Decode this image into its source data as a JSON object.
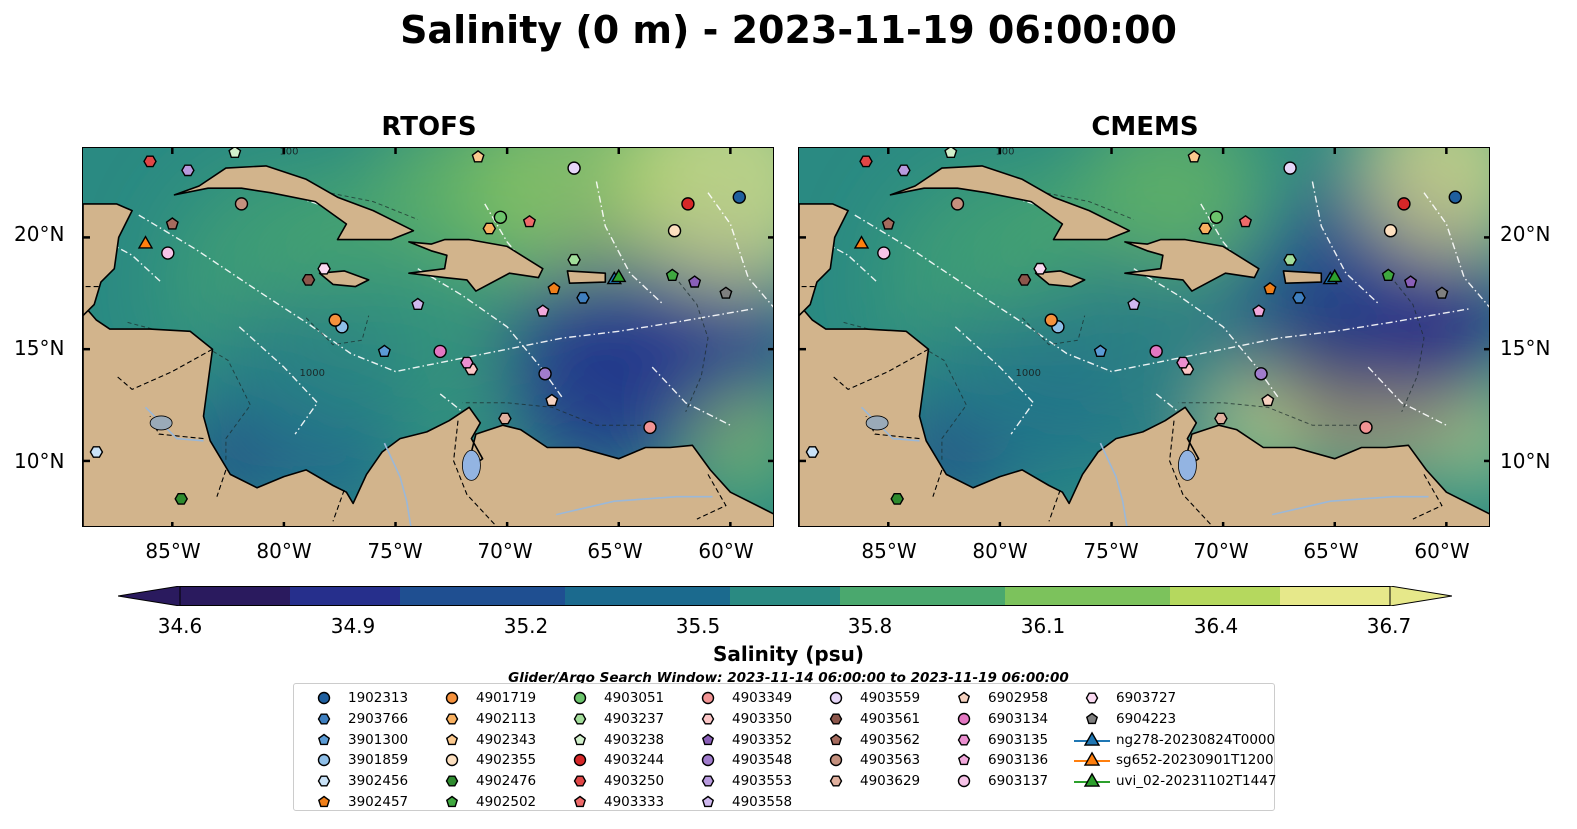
{
  "title": "Salinity (0 m) - 2023-11-19 06:00:00",
  "panels": [
    {
      "title": "RTOFS",
      "anomaly": "rtofs"
    },
    {
      "title": "CMEMS",
      "anomaly": "cmems"
    }
  ],
  "map_extent": {
    "lon": [
      -89,
      -58
    ],
    "lat": [
      7,
      24
    ]
  },
  "lat_ticks": [
    {
      "value": 20,
      "label": "20°N"
    },
    {
      "value": 15,
      "label": "15°N"
    },
    {
      "value": 10,
      "label": "10°N"
    }
  ],
  "lon_ticks": [
    {
      "value": -85,
      "label": "85°W"
    },
    {
      "value": -80,
      "label": "80°W"
    },
    {
      "value": -75,
      "label": "75°W"
    },
    {
      "value": -70,
      "label": "70°W"
    },
    {
      "value": -65,
      "label": "65°W"
    },
    {
      "value": -60,
      "label": "60°W"
    }
  ],
  "colorbar": {
    "label": "Salinity (psu)",
    "min": 34.6,
    "max": 36.7,
    "ticks": [
      "34.6",
      "34.9",
      "35.2",
      "35.5",
      "35.8",
      "36.1",
      "36.4",
      "36.7"
    ],
    "colormap": [
      "#2a1a5e",
      "#262f8c",
      "#1f4f91",
      "#1b6a8e",
      "#2a8a82",
      "#4aa86e",
      "#7cc25c",
      "#b5d85e",
      "#e6e88a"
    ]
  },
  "contour_labels": [
    "1000",
    "100"
  ],
  "search_window": "Glider/Argo Search Window: 2023-11-14 06:00:00 to 2023-11-19 06:00:00",
  "legend": {
    "columns": [
      [
        {
          "label": "1902313",
          "marker": "circle",
          "color": "#1f5f9e"
        },
        {
          "label": "2903766",
          "marker": "hexagon",
          "color": "#3f7fbf"
        },
        {
          "label": "3901300",
          "marker": "pentagon",
          "color": "#5b9bd5"
        },
        {
          "label": "3901859",
          "marker": "circle",
          "color": "#8fbfe8"
        },
        {
          "label": "3902456",
          "marker": "hexagon",
          "color": "#c9e2f7"
        },
        {
          "label": "3902457",
          "marker": "pentagon",
          "color": "#f07f1a"
        }
      ],
      [
        {
          "label": "4901719",
          "marker": "circle",
          "color": "#f5913c"
        },
        {
          "label": "4902113",
          "marker": "hexagon",
          "color": "#f8b060"
        },
        {
          "label": "4902343",
          "marker": "pentagon",
          "color": "#fbc98e"
        },
        {
          "label": "4902355",
          "marker": "circle",
          "color": "#fde0c0"
        },
        {
          "label": "4902476",
          "marker": "hexagon",
          "color": "#2e8b2e"
        },
        {
          "label": "4902502",
          "marker": "pentagon",
          "color": "#3fa83f"
        }
      ],
      [
        {
          "label": "4903051",
          "marker": "circle",
          "color": "#6cc46c"
        },
        {
          "label": "4903237",
          "marker": "hexagon",
          "color": "#a2dd9a"
        },
        {
          "label": "4903238",
          "marker": "pentagon",
          "color": "#d2f0cc"
        },
        {
          "label": "4903244",
          "marker": "circle",
          "color": "#d62728"
        },
        {
          "label": "4903250",
          "marker": "hexagon",
          "color": "#e04646"
        },
        {
          "label": "4903333",
          "marker": "pentagon",
          "color": "#ee6a6a"
        }
      ],
      [
        {
          "label": "4903349",
          "marker": "circle",
          "color": "#f29494"
        },
        {
          "label": "4903350",
          "marker": "hexagon",
          "color": "#fbc6c6"
        },
        {
          "label": "4903352",
          "marker": "pentagon",
          "color": "#8a5fb8"
        },
        {
          "label": "4903548",
          "marker": "circle",
          "color": "#a07ccc"
        },
        {
          "label": "4903553",
          "marker": "hexagon",
          "color": "#b89ade"
        },
        {
          "label": "4903558",
          "marker": "pentagon",
          "color": "#cfb8ee"
        }
      ],
      [
        {
          "label": "4903559",
          "marker": "circle",
          "color": "#e6d6f8"
        },
        {
          "label": "4903561",
          "marker": "hexagon",
          "color": "#8c564b"
        },
        {
          "label": "4903562",
          "marker": "pentagon",
          "color": "#a56b5e"
        },
        {
          "label": "4903563",
          "marker": "circle",
          "color": "#c4907e"
        },
        {
          "label": "4903629",
          "marker": "hexagon",
          "color": "#e0b09e"
        }
      ],
      [
        {
          "label": "6902958",
          "marker": "pentagon",
          "color": "#f6d2c0"
        },
        {
          "label": "6903134",
          "marker": "circle",
          "color": "#e377c2"
        },
        {
          "label": "6903135",
          "marker": "hexagon",
          "color": "#eb8fd0"
        },
        {
          "label": "6903136",
          "marker": "pentagon",
          "color": "#f2a9dc"
        },
        {
          "label": "6903137",
          "marker": "circle",
          "color": "#f7c3e8"
        }
      ],
      [
        {
          "label": "6903727",
          "marker": "hexagon",
          "color": "#fbdaf2"
        },
        {
          "label": "6904223",
          "marker": "pentagon",
          "color": "#7f7f7f"
        },
        {
          "label": "ng278-20230824T0000",
          "marker": "triangle-line",
          "color": "#1f77b4"
        },
        {
          "label": "sg652-20230901T1200",
          "marker": "triangle-line",
          "color": "#ff7f0e"
        },
        {
          "label": "uvi_02-20231102T1447",
          "marker": "triangle-line",
          "color": "#2ca02c"
        }
      ]
    ]
  },
  "observations": [
    {
      "label": "1902313",
      "lon": -59.6,
      "lat": 21.8
    },
    {
      "label": "2903766",
      "lon": -66.6,
      "lat": 17.3
    },
    {
      "label": "3901300",
      "lon": -75.5,
      "lat": 14.9
    },
    {
      "label": "3901859",
      "lon": -77.4,
      "lat": 16.0
    },
    {
      "label": "3902456",
      "lon": -88.4,
      "lat": 10.4
    },
    {
      "label": "3902457",
      "lon": -67.9,
      "lat": 17.7
    },
    {
      "label": "4901719",
      "lon": -77.7,
      "lat": 16.3
    },
    {
      "label": "4902113",
      "lon": -70.8,
      "lat": 20.4
    },
    {
      "label": "4902343",
      "lon": -71.3,
      "lat": 23.6
    },
    {
      "label": "4902355",
      "lon": -62.5,
      "lat": 20.3
    },
    {
      "label": "4902476",
      "lon": -84.6,
      "lat": 8.3
    },
    {
      "label": "4902502",
      "lon": -62.6,
      "lat": 18.3
    },
    {
      "label": "4903051",
      "lon": -70.3,
      "lat": 20.9
    },
    {
      "label": "4903237",
      "lon": -67.0,
      "lat": 19.0
    },
    {
      "label": "4903238",
      "lon": -82.2,
      "lat": 23.8
    },
    {
      "label": "4903244",
      "lon": -61.9,
      "lat": 21.5
    },
    {
      "label": "4903250",
      "lon": -86.0,
      "lat": 23.4
    },
    {
      "label": "4903333",
      "lon": -69.0,
      "lat": 20.7
    },
    {
      "label": "4903349",
      "lon": -63.6,
      "lat": 11.5
    },
    {
      "label": "4903350",
      "lon": -71.6,
      "lat": 14.1
    },
    {
      "label": "4903352",
      "lon": -61.6,
      "lat": 18.0
    },
    {
      "label": "4903548",
      "lon": -68.3,
      "lat": 13.9
    },
    {
      "label": "4903553",
      "lon": -84.3,
      "lat": 23.0
    },
    {
      "label": "4903558",
      "lon": -74.0,
      "lat": 17.0
    },
    {
      "label": "4903559",
      "lon": -67.0,
      "lat": 23.1
    },
    {
      "label": "4903561",
      "lon": -78.9,
      "lat": 18.1
    },
    {
      "label": "4903562",
      "lon": -85.0,
      "lat": 20.6
    },
    {
      "label": "4903563",
      "lon": -81.9,
      "lat": 21.5
    },
    {
      "label": "4903629",
      "lon": -70.1,
      "lat": 11.9
    },
    {
      "label": "6902958",
      "lon": -68.0,
      "lat": 12.7
    },
    {
      "label": "6903134",
      "lon": -73.0,
      "lat": 14.9
    },
    {
      "label": "6903135",
      "lon": -71.8,
      "lat": 14.4
    },
    {
      "label": "6903136",
      "lon": -68.4,
      "lat": 16.7
    },
    {
      "label": "6903137",
      "lon": -85.2,
      "lat": 19.3
    },
    {
      "label": "6903727",
      "lon": -78.2,
      "lat": 18.6
    },
    {
      "label": "6904223",
      "lon": -60.2,
      "lat": 17.5
    },
    {
      "label": "ng278-20230824T0000",
      "lon": -65.2,
      "lat": 18.1
    },
    {
      "label": "sg652-20230901T1200",
      "lon": -86.2,
      "lat": 19.7
    },
    {
      "label": "uvi_02-20231102T1447",
      "lon": -65.0,
      "lat": 18.2
    }
  ]
}
